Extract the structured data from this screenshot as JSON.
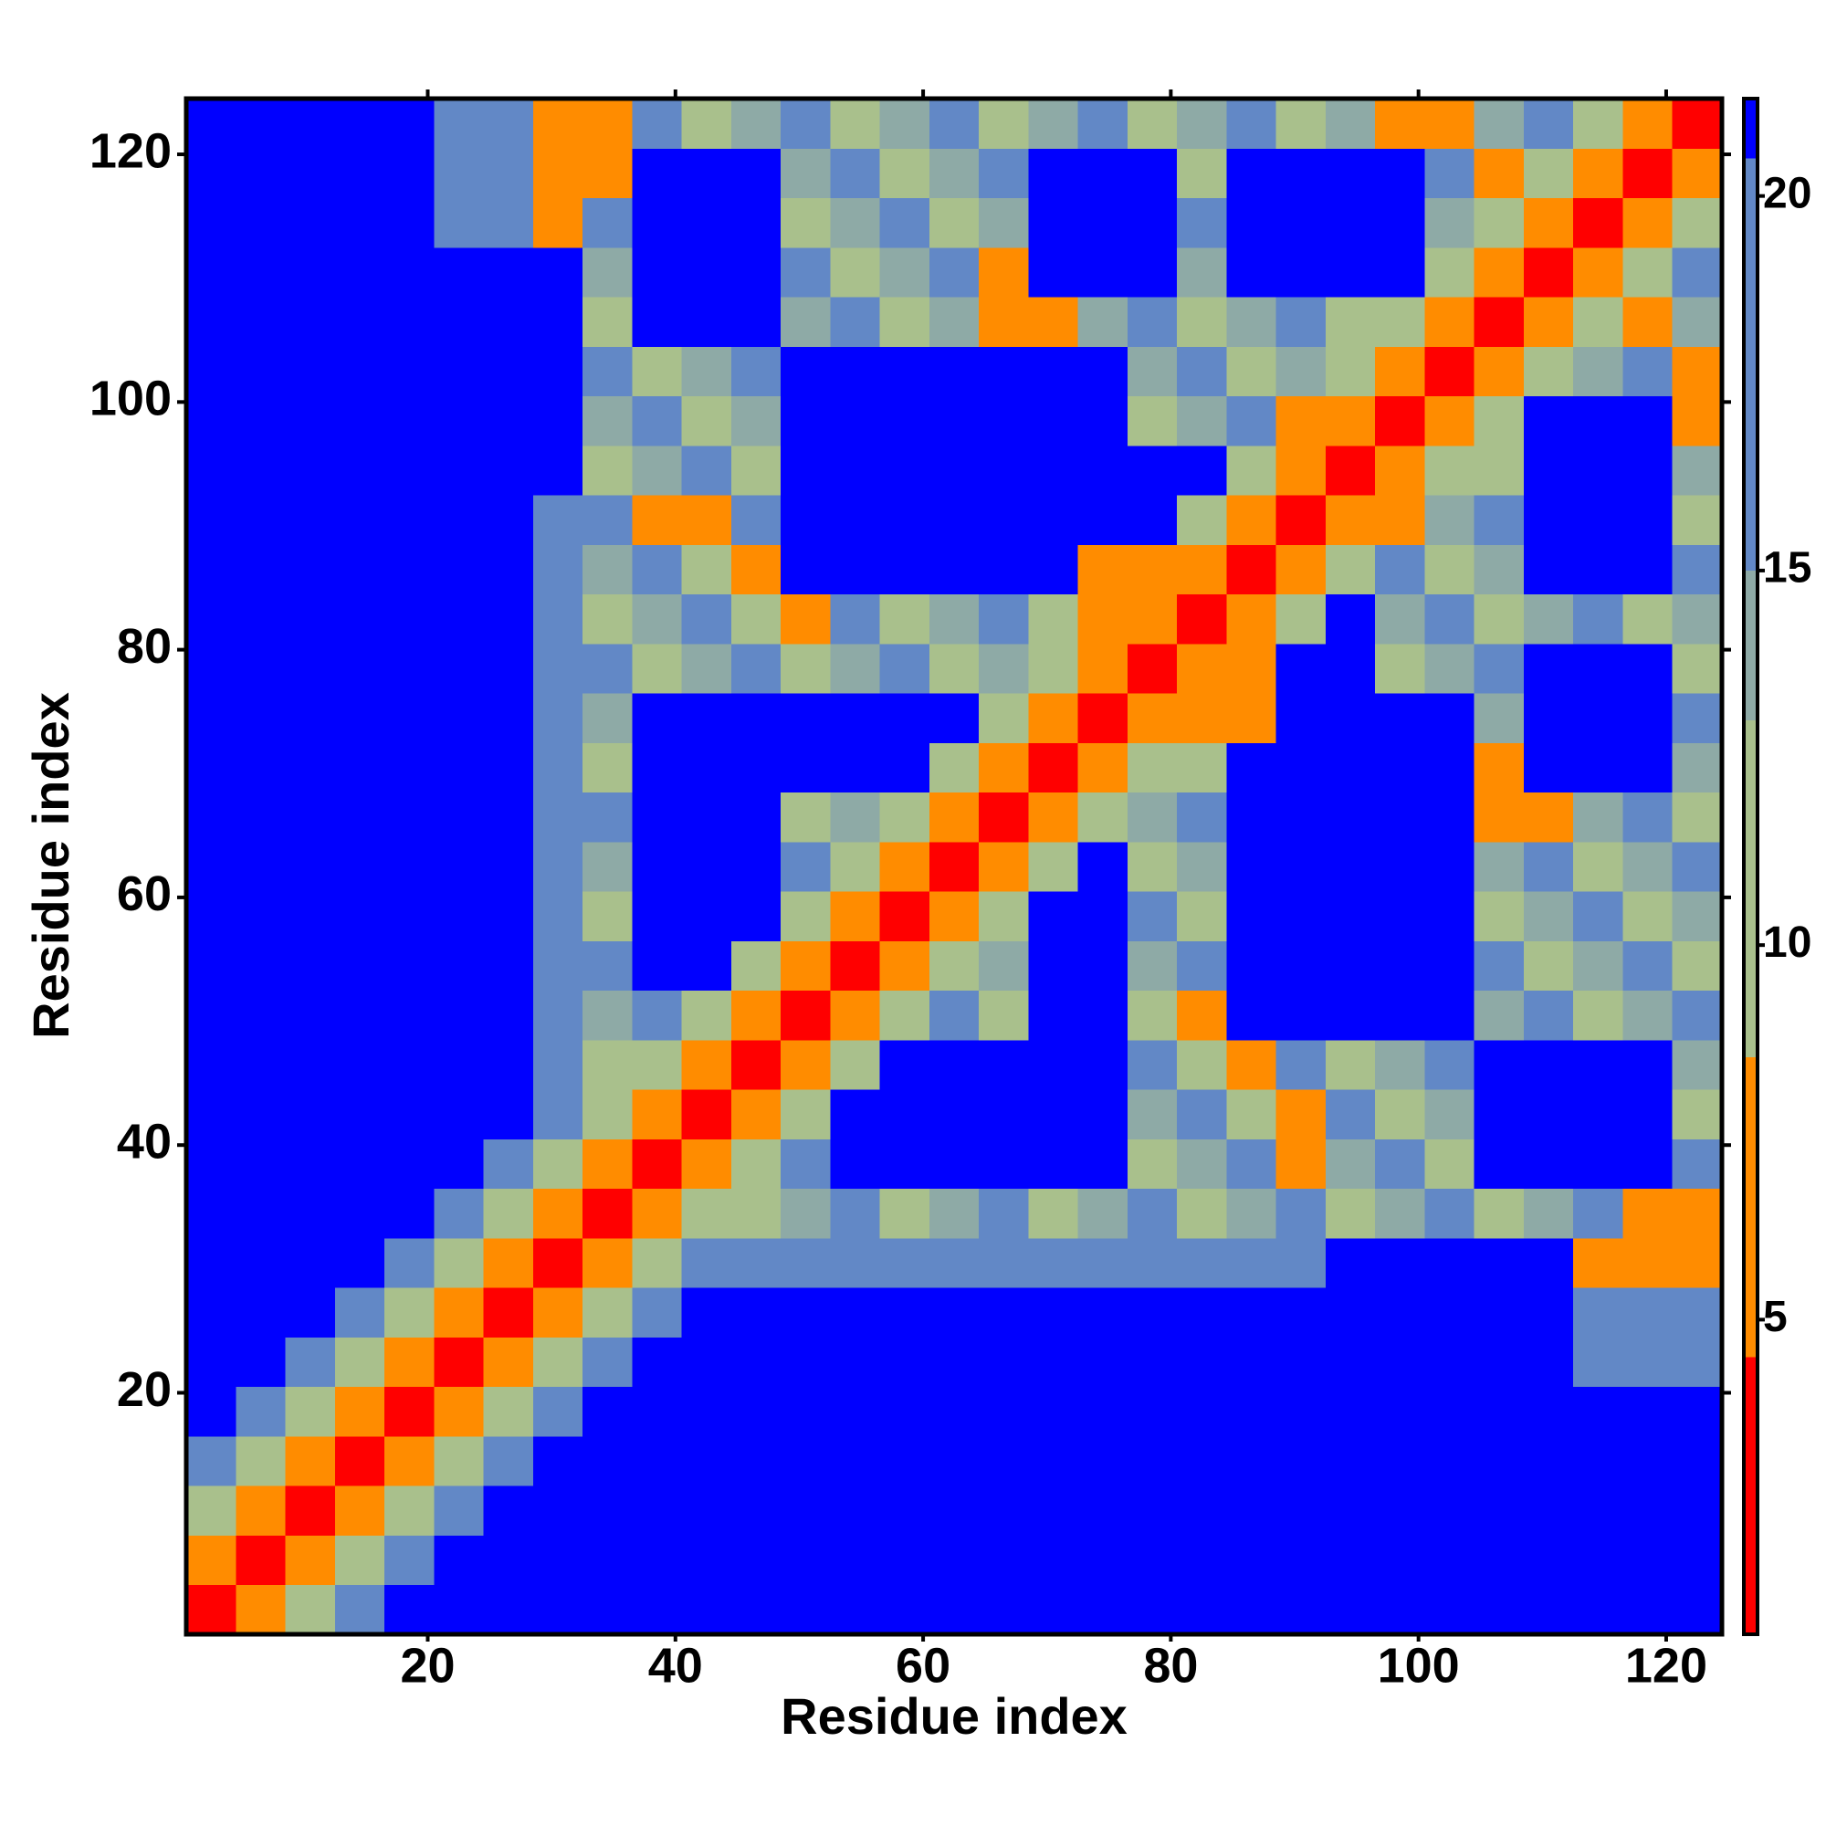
{
  "chart_data": {
    "type": "heatmap",
    "xlabel": "Residue index",
    "ylabel": "Residue index",
    "xlim": [
      0.5,
      124.5
    ],
    "ylim": [
      0.5,
      124.5
    ],
    "xticks": [
      20,
      40,
      60,
      80,
      100,
      120
    ],
    "yticks": [
      20,
      40,
      60,
      80,
      100,
      120
    ],
    "xbins": [
      0.5,
      4.5,
      8.5,
      12.5,
      16.5,
      20.5,
      24.5,
      28.5,
      32.5,
      36.5,
      40.5,
      44.5,
      48.5,
      52.5,
      56.5,
      60.5,
      64.5,
      68.5,
      72.5,
      76.5,
      80.5,
      84.5,
      88.5,
      92.5,
      96.5,
      100.5,
      104.5,
      108.5,
      112.5,
      116.5,
      120.5,
      124.5
    ],
    "ybins": [
      0.5,
      4.5,
      8.5,
      12.5,
      16.5,
      20.5,
      24.5,
      28.5,
      32.5,
      36.5,
      40.5,
      44.5,
      48.5,
      52.5,
      56.5,
      60.5,
      64.5,
      68.5,
      72.5,
      76.5,
      80.5,
      84.5,
      88.5,
      92.5,
      96.5,
      100.5,
      104.5,
      108.5,
      112.5,
      116.5,
      120.5,
      124.5
    ],
    "values": [
      [
        2,
        6,
        11,
        16,
        21,
        21,
        21,
        21,
        21,
        21,
        21,
        21,
        21,
        21,
        21,
        21,
        21,
        21,
        21,
        21,
        21,
        21,
        21,
        21,
        21,
        21,
        21,
        21,
        21,
        21,
        21
      ],
      [
        6,
        2,
        6,
        11,
        16,
        21,
        21,
        21,
        21,
        21,
        21,
        21,
        21,
        21,
        21,
        21,
        21,
        21,
        21,
        21,
        21,
        21,
        21,
        21,
        21,
        21,
        21,
        21,
        21,
        21,
        21
      ],
      [
        11,
        6,
        2,
        6,
        11,
        16,
        21,
        21,
        21,
        21,
        21,
        21,
        21,
        21,
        21,
        21,
        21,
        21,
        21,
        21,
        21,
        21,
        21,
        21,
        21,
        21,
        21,
        21,
        21,
        21,
        21
      ],
      [
        16,
        11,
        6,
        2,
        6,
        11,
        16,
        21,
        21,
        21,
        21,
        21,
        21,
        21,
        21,
        21,
        21,
        21,
        21,
        21,
        21,
        21,
        21,
        21,
        21,
        21,
        21,
        21,
        21,
        21,
        21
      ],
      [
        21,
        16,
        11,
        6,
        2,
        6,
        11,
        16,
        21,
        21,
        21,
        21,
        21,
        21,
        21,
        21,
        21,
        21,
        21,
        21,
        21,
        21,
        21,
        21,
        21,
        21,
        21,
        21,
        21,
        21,
        21
      ],
      [
        21,
        21,
        16,
        11,
        6,
        2,
        6,
        11,
        16,
        21,
        21,
        21,
        21,
        21,
        21,
        21,
        21,
        21,
        21,
        21,
        21,
        21,
        21,
        21,
        21,
        21,
        21,
        21,
        16,
        16,
        16
      ],
      [
        21,
        21,
        21,
        16,
        11,
        6,
        2,
        6,
        11,
        16,
        21,
        21,
        21,
        21,
        21,
        21,
        21,
        21,
        21,
        21,
        21,
        21,
        21,
        21,
        21,
        21,
        21,
        21,
        16,
        16,
        16
      ],
      [
        21,
        21,
        21,
        21,
        16,
        11,
        6,
        2,
        6,
        11,
        16,
        16,
        16,
        16,
        16,
        16,
        16,
        16,
        16,
        16,
        16,
        16,
        16,
        21,
        21,
        21,
        21,
        21,
        6,
        6,
        6
      ],
      [
        21,
        21,
        21,
        21,
        21,
        16,
        11,
        6,
        2,
        6,
        11,
        12,
        14,
        16,
        12,
        14,
        16,
        12,
        14,
        16,
        12,
        14,
        16,
        12,
        14,
        16,
        12,
        14,
        16,
        6,
        6
      ],
      [
        21,
        21,
        21,
        21,
        21,
        21,
        16,
        11,
        6,
        2,
        6,
        11,
        16,
        21,
        21,
        21,
        21,
        21,
        21,
        12,
        14,
        16,
        6,
        14,
        16,
        12,
        21,
        21,
        21,
        21,
        16
      ],
      [
        21,
        21,
        21,
        21,
        21,
        21,
        21,
        16,
        11,
        6,
        2,
        6,
        11,
        21,
        21,
        21,
        21,
        21,
        21,
        14,
        16,
        12,
        6,
        16,
        12,
        14,
        21,
        21,
        21,
        21,
        12
      ],
      [
        21,
        21,
        21,
        21,
        21,
        21,
        21,
        16,
        12,
        11,
        6,
        2,
        6,
        11,
        21,
        21,
        21,
        21,
        21,
        16,
        12,
        6,
        16,
        12,
        14,
        16,
        21,
        21,
        21,
        21,
        14
      ],
      [
        21,
        21,
        21,
        21,
        21,
        21,
        21,
        16,
        14,
        16,
        11,
        6,
        2,
        6,
        11,
        16,
        12,
        21,
        21,
        12,
        6,
        21,
        21,
        21,
        21,
        21,
        14,
        16,
        12,
        14,
        16
      ],
      [
        21,
        21,
        21,
        21,
        21,
        21,
        21,
        16,
        16,
        21,
        21,
        11,
        6,
        2,
        6,
        11,
        14,
        21,
        21,
        14,
        16,
        21,
        21,
        21,
        21,
        21,
        16,
        12,
        14,
        16,
        12
      ],
      [
        21,
        21,
        21,
        21,
        21,
        21,
        21,
        16,
        12,
        21,
        21,
        21,
        11,
        6,
        2,
        6,
        11,
        21,
        21,
        16,
        12,
        21,
        21,
        21,
        21,
        21,
        12,
        14,
        16,
        12,
        14
      ],
      [
        21,
        21,
        21,
        21,
        21,
        21,
        21,
        16,
        14,
        21,
        21,
        21,
        16,
        11,
        6,
        2,
        6,
        11,
        21,
        12,
        14,
        21,
        21,
        21,
        21,
        21,
        14,
        16,
        12,
        14,
        16
      ],
      [
        21,
        21,
        21,
        21,
        21,
        21,
        21,
        16,
        16,
        21,
        21,
        21,
        12,
        14,
        11,
        6,
        2,
        6,
        11,
        14,
        16,
        21,
        21,
        21,
        21,
        21,
        6,
        6,
        14,
        16,
        12
      ],
      [
        21,
        21,
        21,
        21,
        21,
        21,
        21,
        16,
        12,
        21,
        21,
        21,
        21,
        21,
        21,
        11,
        6,
        2,
        6,
        11,
        12,
        21,
        21,
        21,
        21,
        21,
        6,
        21,
        21,
        21,
        14
      ],
      [
        21,
        21,
        21,
        21,
        21,
        21,
        21,
        16,
        14,
        21,
        21,
        21,
        21,
        21,
        21,
        21,
        11,
        6,
        2,
        6,
        6,
        6,
        21,
        21,
        21,
        21,
        14,
        21,
        21,
        21,
        16
      ],
      [
        21,
        21,
        21,
        21,
        21,
        21,
        21,
        16,
        16,
        12,
        14,
        16,
        12,
        14,
        16,
        12,
        14,
        11,
        6,
        2,
        6,
        6,
        21,
        21,
        12,
        14,
        16,
        21,
        21,
        21,
        12
      ],
      [
        21,
        21,
        21,
        21,
        21,
        21,
        21,
        16,
        12,
        14,
        16,
        12,
        6,
        16,
        12,
        14,
        16,
        12,
        6,
        6,
        2,
        6,
        11,
        21,
        14,
        16,
        12,
        14,
        16,
        12,
        14
      ],
      [
        21,
        21,
        21,
        21,
        21,
        21,
        21,
        16,
        14,
        16,
        12,
        6,
        21,
        21,
        21,
        21,
        21,
        21,
        6,
        6,
        6,
        2,
        6,
        11,
        16,
        12,
        14,
        21,
        21,
        21,
        16
      ],
      [
        21,
        21,
        21,
        21,
        21,
        21,
        21,
        16,
        16,
        6,
        6,
        16,
        21,
        21,
        21,
        21,
        21,
        21,
        21,
        21,
        11,
        6,
        2,
        6,
        6,
        14,
        16,
        21,
        21,
        21,
        12
      ],
      [
        21,
        21,
        21,
        21,
        21,
        21,
        21,
        21,
        12,
        14,
        16,
        12,
        21,
        21,
        21,
        21,
        21,
        21,
        21,
        21,
        21,
        11,
        6,
        2,
        6,
        11,
        12,
        21,
        21,
        21,
        14
      ],
      [
        21,
        21,
        21,
        21,
        21,
        21,
        21,
        21,
        14,
        16,
        12,
        14,
        21,
        21,
        21,
        21,
        21,
        21,
        21,
        12,
        14,
        16,
        6,
        6,
        2,
        6,
        11,
        21,
        21,
        21,
        6
      ],
      [
        21,
        21,
        21,
        21,
        21,
        21,
        21,
        21,
        16,
        12,
        14,
        16,
        21,
        21,
        21,
        21,
        21,
        21,
        21,
        14,
        16,
        12,
        14,
        11,
        6,
        2,
        6,
        11,
        14,
        16,
        6
      ],
      [
        21,
        21,
        21,
        21,
        21,
        21,
        21,
        21,
        12,
        21,
        21,
        21,
        14,
        16,
        12,
        14,
        6,
        6,
        14,
        16,
        12,
        14,
        16,
        12,
        11,
        6,
        2,
        6,
        11,
        6,
        14
      ],
      [
        21,
        21,
        21,
        21,
        21,
        21,
        21,
        21,
        14,
        21,
        21,
        21,
        16,
        12,
        14,
        16,
        6,
        21,
        21,
        21,
        14,
        21,
        21,
        21,
        21,
        11,
        6,
        2,
        6,
        11,
        16
      ],
      [
        21,
        21,
        21,
        21,
        21,
        16,
        16,
        6,
        16,
        21,
        21,
        21,
        12,
        14,
        16,
        12,
        14,
        21,
        21,
        21,
        16,
        21,
        21,
        21,
        21,
        14,
        11,
        6,
        2,
        6,
        11
      ],
      [
        21,
        21,
        21,
        21,
        21,
        16,
        16,
        6,
        6,
        21,
        21,
        21,
        14,
        16,
        12,
        14,
        16,
        21,
        21,
        21,
        12,
        21,
        21,
        21,
        21,
        16,
        6,
        11,
        6,
        2,
        6
      ],
      [
        21,
        21,
        21,
        21,
        21,
        16,
        16,
        6,
        6,
        16,
        12,
        14,
        16,
        12,
        14,
        16,
        12,
        14,
        16,
        12,
        14,
        16,
        12,
        14,
        6,
        6,
        14,
        16,
        11,
        6,
        2
      ]
    ],
    "colorbar": {
      "lim": [
        0.8,
        21.3
      ],
      "ticks": [
        5,
        10,
        15,
        20
      ],
      "bands": [
        {
          "from": 0.8,
          "to": 4.5,
          "color": "#ff0000"
        },
        {
          "from": 4.5,
          "to": 8.5,
          "color": "#ff8c00"
        },
        {
          "from": 8.5,
          "to": 13,
          "color": "#a9c08c"
        },
        {
          "from": 13,
          "to": 15,
          "color": "#8eaaa6"
        },
        {
          "from": 15,
          "to": 20.5,
          "color": "#6288c6"
        },
        {
          "from": 20.5,
          "to": 21.3,
          "color": "#0000ff"
        }
      ]
    }
  }
}
